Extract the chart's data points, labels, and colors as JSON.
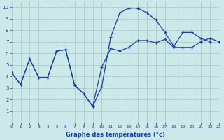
{
  "xlabel": "Graphe des températures (°c)",
  "line1_x": [
    0,
    1,
    2,
    3,
    4,
    5,
    6,
    7,
    8,
    9,
    10,
    11,
    12,
    13,
    14,
    15,
    16,
    17,
    18,
    19,
    20,
    21,
    22,
    23
  ],
  "line1_y": [
    4.3,
    3.3,
    5.5,
    3.9,
    3.9,
    6.2,
    6.3,
    3.2,
    2.5,
    1.4,
    3.1,
    7.4,
    9.5,
    9.9,
    9.9,
    9.5,
    8.9,
    7.8,
    6.6,
    7.8,
    7.8,
    7.3,
    7.0,
    null
  ],
  "line2_x": [
    0,
    1,
    2,
    3,
    4,
    5,
    6,
    7,
    8,
    9,
    10,
    11,
    12,
    13,
    14,
    15,
    16,
    17,
    18,
    19,
    20,
    21,
    22,
    23
  ],
  "line2_y": [
    4.3,
    3.3,
    5.5,
    3.9,
    3.9,
    6.2,
    6.3,
    3.2,
    2.5,
    1.4,
    4.8,
    6.4,
    6.2,
    6.5,
    7.1,
    7.1,
    6.9,
    7.2,
    6.5,
    6.5,
    6.5,
    7.0,
    7.3,
    7.0
  ],
  "xlim": [
    0,
    23
  ],
  "ylim": [
    0,
    10.4
  ],
  "xticks": [
    0,
    1,
    2,
    3,
    4,
    5,
    6,
    7,
    8,
    9,
    10,
    11,
    12,
    13,
    14,
    15,
    16,
    17,
    18,
    19,
    20,
    21,
    22,
    23
  ],
  "yticks": [
    1,
    2,
    3,
    4,
    5,
    6,
    7,
    8,
    9,
    10
  ],
  "line_color": "#1c3fa0",
  "bg_color": "#cce8e8",
  "grid_color": "#aacccc",
  "marker": "+"
}
